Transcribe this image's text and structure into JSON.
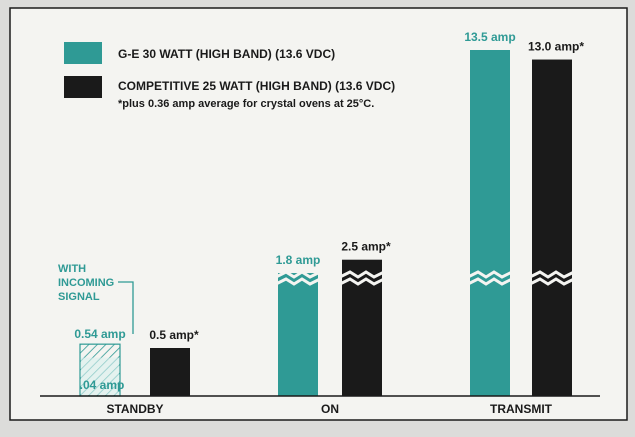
{
  "colors": {
    "page_bg": "#dcdcda",
    "panel_bg": "#f4f4f1",
    "frame": "#1b1b1b",
    "ge": "#2f9a95",
    "competitive": "#1a1a1a",
    "callout": "#2f9a95",
    "text": "#1a1a1a"
  },
  "legend": {
    "ge_label": "G-E 30 WATT (HIGH BAND) (13.6 VDC)",
    "competitive_label": "COMPETITIVE 25 WATT (HIGH BAND) (13.6 VDC)",
    "footnote": "*plus 0.36 amp average for crystal ovens at 25°C."
  },
  "callout": {
    "line1": "WITH",
    "line2": "INCOMING",
    "line3": "SIGNAL"
  },
  "chart_data": {
    "type": "bar",
    "categories": [
      "STANDBY",
      "ON",
      "TRANSMIT"
    ],
    "series": [
      {
        "name": "G-E 30 WATT (HIGH BAND) (13.6 VDC)",
        "values": [
          0.04,
          1.8,
          13.5
        ],
        "labels": [
          ".04 amp",
          "1.8 amp",
          "13.5 amp"
        ],
        "with_incoming_signal": [
          0.54,
          null,
          null
        ],
        "with_incoming_signal_labels": [
          "0.54 amp",
          "",
          ""
        ]
      },
      {
        "name": "COMPETITIVE 25 WATT (HIGH BAND) (13.6 VDC)",
        "values": [
          0.5,
          2.5,
          13.0
        ],
        "labels": [
          "0.5 amp*",
          "2.5 amp*",
          "13.0 amp*"
        ]
      }
    ],
    "axis_break": true,
    "grid": false,
    "legend_position": "top-left",
    "title": "",
    "xlabel": "",
    "ylabel": ""
  }
}
